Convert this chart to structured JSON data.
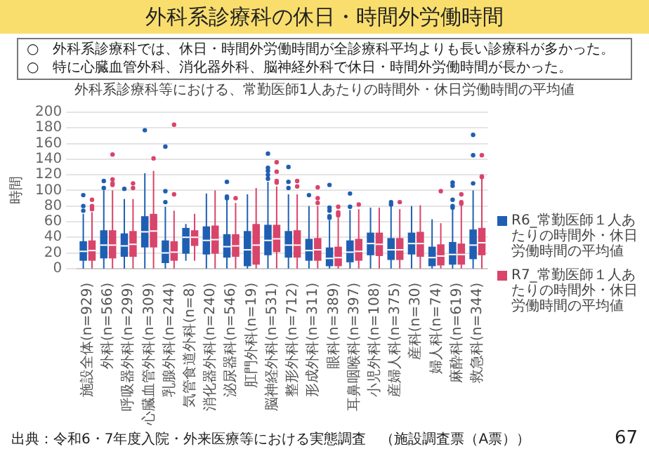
{
  "chart_data": {
    "type": "box",
    "title": "外科系診療科の休日・時間外労働時間",
    "subtitle": "外科系診療科等における、常勤医師1人あたりの時間外・休日労働時間の平均値",
    "ylabel": "時間",
    "categories": [
      "施設全体(n=929)",
      "外科(n=566)",
      "呼吸器外科(n=299)",
      "心臓血管外科(n=309)",
      "乳腺外科(n=244)",
      "気管食道外科(n=8)",
      "消化器外科(n=240)",
      "泌尿器科(n=546)",
      "肛門外科(n=19)",
      "脳神経外科(n=531)",
      "整形外科(n=712)",
      "形成外科(n=311)",
      "眼科(n=389)",
      "耳鼻咽喉科(n=397)",
      "小児外科(n=108)",
      "産婦人科(n=375)",
      "産科(n=30)",
      "婦人科(n=74)",
      "麻酔科(n=619)",
      "救急科(n=344)"
    ],
    "ylim": [
      0,
      200
    ],
    "yticks": [
      0,
      20,
      40,
      60,
      80,
      100,
      120,
      140,
      160,
      180,
      200
    ],
    "grid": "y",
    "legend": "right",
    "annotations": [
      "○　外科系診療科では、休日・時間外労働時間が全診療科平均よりも長い診療科が多かった。",
      "○　特に心臓血管外科、消化器外科、脳神経外科で休日・時間外労働時間が長かった。",
      "出典：令和6・7年度入院・外来医療等における実態調査　（施設調査票（A票））",
      "67"
    ],
    "series": [
      {
        "name": "R6_常勤医師１人あたりの時間外・休日労働時間の平均値",
        "color": "#1f5fb3",
        "boxes": [
          {
            "low": 0,
            "q1": 10,
            "median": 22,
            "q3": 35,
            "high": 70,
            "outliers": [
              74,
              80,
              94
            ]
          },
          {
            "low": 0,
            "q1": 13,
            "median": 30,
            "q3": 49,
            "high": 100,
            "outliers": [
              103,
              112
            ]
          },
          {
            "low": 0,
            "q1": 15,
            "median": 29,
            "q3": 45,
            "high": 89,
            "outliers": [
              102
            ]
          },
          {
            "low": 0,
            "q1": 27,
            "median": 47,
            "q3": 67,
            "high": 122,
            "outliers": [
              177
            ]
          },
          {
            "low": 0,
            "q1": 7,
            "median": 20,
            "q3": 36,
            "high": 79,
            "outliers": [
              85,
              99,
              156
            ]
          },
          {
            "low": 10,
            "q1": 19,
            "median": 40,
            "q3": 52,
            "high": 57
          },
          {
            "low": 0,
            "q1": 18,
            "median": 36,
            "q3": 54,
            "high": 96
          },
          {
            "low": 0,
            "q1": 14,
            "median": 28,
            "q3": 44,
            "high": 88,
            "outliers": [
              90,
              92,
              111
            ]
          },
          {
            "low": 0,
            "q1": 3,
            "median": 24,
            "q3": 48,
            "high": 95
          },
          {
            "low": 0,
            "q1": 17,
            "median": 36,
            "q3": 56,
            "high": 111,
            "outliers": [
              115,
              120,
              125,
              129,
              147
            ]
          },
          {
            "low": 0,
            "q1": 14,
            "median": 30,
            "q3": 48,
            "high": 95,
            "outliers": [
              103,
              111,
              130
            ]
          },
          {
            "low": 0,
            "q1": 10,
            "median": 23,
            "q3": 38,
            "high": 80,
            "outliers": [
              94
            ]
          },
          {
            "low": 0,
            "q1": 3,
            "median": 13,
            "q3": 27,
            "high": 62,
            "outliers": [
              65,
              67,
              74,
              78,
              107
            ]
          },
          {
            "low": 0,
            "q1": 8,
            "median": 21,
            "q3": 36,
            "high": 75,
            "outliers": [
              79,
              96
            ]
          },
          {
            "low": 0,
            "q1": 17,
            "median": 32,
            "q3": 46,
            "high": 78
          },
          {
            "low": 0,
            "q1": 11,
            "median": 24,
            "q3": 39,
            "high": 80,
            "outliers": [
              82,
              85
            ]
          },
          {
            "low": 0,
            "q1": 18,
            "median": 32,
            "q3": 46,
            "high": 80
          },
          {
            "low": 0,
            "q1": 3,
            "median": 14,
            "q3": 28,
            "high": 63
          },
          {
            "low": 0,
            "q1": 5,
            "median": 18,
            "q3": 34,
            "high": 77,
            "outliers": [
              78,
              80,
              88,
              106,
              110
            ]
          },
          {
            "low": 0,
            "q1": 12,
            "median": 30,
            "q3": 50,
            "high": 100,
            "outliers": [
              109,
              145,
              171
            ]
          }
        ]
      },
      {
        "name": "R7_常勤医師１人あたりの時間外・休日労働時間の平均値",
        "color": "#d9446b",
        "boxes": [
          {
            "low": 0,
            "q1": 10,
            "median": 23,
            "q3": 36,
            "high": 72,
            "outliers": [
              76,
              78,
              80,
              88
            ]
          },
          {
            "low": 0,
            "q1": 13,
            "median": 30,
            "q3": 49,
            "high": 100,
            "outliers": [
              107,
              109,
              114,
              146
            ]
          },
          {
            "low": 0,
            "q1": 15,
            "median": 31,
            "q3": 48,
            "high": 89,
            "outliers": [
              103,
              109
            ]
          },
          {
            "low": 0,
            "q1": 27,
            "median": 48,
            "q3": 70,
            "high": 125,
            "outliers": [
              141
            ]
          },
          {
            "low": 0,
            "q1": 10,
            "median": 21,
            "q3": 35,
            "high": 74,
            "outliers": [
              95,
              184
            ]
          },
          {
            "low": 10,
            "q1": 29,
            "median": 40,
            "q3": 49,
            "high": 70
          },
          {
            "low": 0,
            "q1": 19,
            "median": 37,
            "q3": 55,
            "high": 100
          },
          {
            "low": 0,
            "q1": 15,
            "median": 29,
            "q3": 44,
            "high": 84,
            "outliers": [
              90
            ]
          },
          {
            "low": 0,
            "q1": 5,
            "median": 30,
            "q3": 57,
            "high": 103
          },
          {
            "low": 0,
            "q1": 21,
            "median": 38,
            "q3": 56,
            "high": 105,
            "outliers": [
              110,
              112,
              124,
              136
            ]
          },
          {
            "low": 0,
            "q1": 14,
            "median": 30,
            "q3": 49,
            "high": 95,
            "outliers": [
              105,
              112
            ]
          },
          {
            "low": 0,
            "q1": 10,
            "median": 24,
            "q3": 39,
            "high": 80,
            "outliers": [
              84,
              90,
              104
            ]
          },
          {
            "low": 0,
            "q1": 3,
            "median": 14,
            "q3": 28,
            "high": 65,
            "outliers": [
              68,
              70,
              72,
              79
            ]
          },
          {
            "low": 0,
            "q1": 10,
            "median": 22,
            "q3": 38,
            "high": 76,
            "outliers": [
              82
            ]
          },
          {
            "low": 0,
            "q1": 16,
            "median": 31,
            "q3": 46,
            "high": 78
          },
          {
            "low": 0,
            "q1": 11,
            "median": 24,
            "q3": 39,
            "high": 76,
            "outliers": [
              85
            ]
          },
          {
            "low": 0,
            "q1": 15,
            "median": 32,
            "q3": 47,
            "high": 81
          },
          {
            "low": 0,
            "q1": 4,
            "median": 16,
            "q3": 31,
            "high": 58,
            "outliers": [
              99
            ]
          },
          {
            "low": 0,
            "q1": 5,
            "median": 18,
            "q3": 32,
            "high": 82,
            "outliers": [
              83,
              85,
              95
            ]
          },
          {
            "low": 0,
            "q1": 17,
            "median": 33,
            "q3": 52,
            "high": 115,
            "outliers": [
              117,
              118,
              145
            ]
          }
        ]
      }
    ]
  }
}
